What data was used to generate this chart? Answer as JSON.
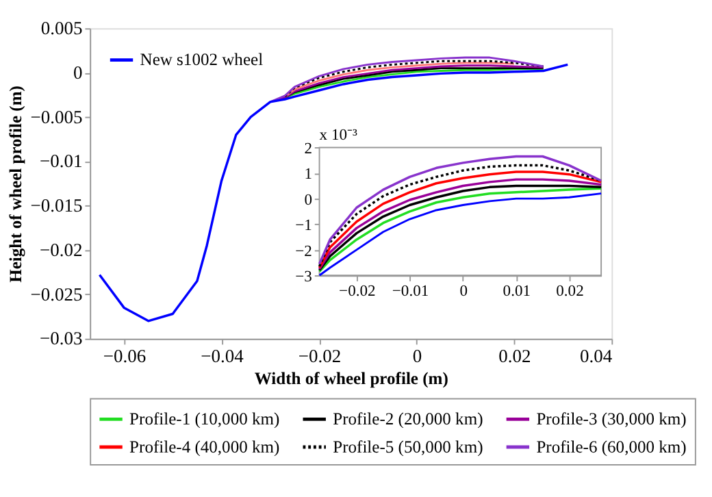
{
  "chart_data": [
    {
      "type": "line",
      "xlabel": "Width of wheel profile (m)",
      "ylabel": "Height of wheel profile (m)",
      "xlim": [
        -0.067,
        0.04
      ],
      "xticks": [
        -0.06,
        -0.04,
        -0.02,
        0,
        0.02,
        0.04
      ],
      "ylim": [
        -0.03,
        0.005
      ],
      "yticks": [
        -0.03,
        -0.025,
        -0.02,
        -0.015,
        -0.01,
        -0.005,
        0,
        0.005
      ],
      "grid": false,
      "legend": "top left",
      "line_style": "solid",
      "x": [
        -0.065,
        -0.06,
        -0.055,
        -0.05,
        -0.045,
        -0.043,
        -0.04,
        -0.037,
        -0.034,
        -0.03,
        -0.027,
        -0.025,
        -0.02,
        -0.015,
        -0.01,
        -0.005,
        0,
        0.005,
        0.01,
        0.015,
        0.02,
        0.026,
        0.031
      ],
      "series": [
        {
          "name": "New s1002 wheel",
          "color": "#0000ff",
          "values": [
            -0.0228,
            -0.0265,
            -0.028,
            -0.0272,
            -0.0235,
            -0.0195,
            -0.0122,
            -0.007,
            -0.005,
            -0.0033,
            -0.003,
            -0.0027,
            -0.002,
            -0.0013,
            -0.0008,
            -0.0005,
            -0.0003,
            -0.0001,
            0,
            0,
            0.0001,
            0.0002,
            0.0009
          ]
        },
        {
          "color": "#22dd22",
          "values": [
            null,
            null,
            null,
            null,
            null,
            null,
            null,
            null,
            null,
            null,
            -0.0028,
            -0.0024,
            -0.0016,
            -0.001,
            -0.0005,
            -0.0002,
            0.0001,
            0.0002,
            0.0003,
            0.0003,
            0.0004,
            0.0004,
            null
          ]
        },
        {
          "color": "#000000",
          "values": [
            null,
            null,
            null,
            null,
            null,
            null,
            null,
            null,
            null,
            null,
            -0.0028,
            -0.0022,
            -0.0014,
            -0.0007,
            -0.0003,
            0.0001,
            0.0003,
            0.0005,
            0.0005,
            0.0005,
            0.0005,
            0.0005,
            null
          ]
        },
        {
          "color": "#990099",
          "values": [
            null,
            null,
            null,
            null,
            null,
            null,
            null,
            null,
            null,
            -0.0033,
            -0.0028,
            -0.0021,
            -0.0012,
            -0.0005,
            -0.0001,
            0.0003,
            0.0005,
            0.0007,
            0.0008,
            0.0008,
            0.0007,
            0.0006,
            null
          ]
        },
        {
          "color": "#ff7777",
          "values": [
            null,
            null,
            null,
            null,
            null,
            null,
            null,
            null,
            null,
            null,
            -0.0027,
            -0.0019,
            -0.0009,
            -0.0002,
            0.0003,
            0.0006,
            0.0008,
            0.001,
            0.0011,
            0.0011,
            0.001,
            null,
            null
          ]
        },
        {
          "color": "#000000",
          "line_style": "dotted",
          "values": [
            null,
            null,
            null,
            null,
            null,
            null,
            null,
            null,
            null,
            null,
            -0.0027,
            -0.0017,
            -0.0006,
            0.0001,
            0.0006,
            0.0009,
            0.0011,
            0.0013,
            0.0013,
            0.0013,
            0.0011,
            0.0007,
            null
          ]
        },
        {
          "color": "#8833cc",
          "values": [
            null,
            null,
            null,
            null,
            null,
            null,
            null,
            null,
            null,
            -0.0033,
            -0.0026,
            -0.0016,
            -0.0004,
            0.0004,
            0.0009,
            0.0012,
            0.0014,
            0.0016,
            0.0017,
            0.0017,
            0.0013,
            0.0007,
            null
          ]
        }
      ]
    },
    {
      "type": "line",
      "xlim": [
        -0.027,
        0.026
      ],
      "xticks": [
        -0.02,
        -0.01,
        0,
        0.01,
        0.02
      ],
      "ylim": [
        -3,
        2
      ],
      "yticks": [
        -3,
        -2,
        -1,
        0,
        1,
        2
      ],
      "grid": false,
      "legend": "bottom",
      "line_style": "solid",
      "annotations": [
        "x 10⁻³"
      ],
      "x": [
        -0.027,
        -0.025,
        -0.02,
        -0.015,
        -0.01,
        -0.005,
        0,
        0.005,
        0.01,
        0.015,
        0.02,
        0.026
      ],
      "series": [
        {
          "color": "#0000ff",
          "values": [
            -3,
            -2.7,
            -2.0,
            -1.3,
            -0.8,
            -0.45,
            -0.25,
            -0.1,
            0,
            0,
            0.05,
            0.2
          ]
        },
        {
          "name": "Profile-1 (10,000 km)",
          "color": "#22dd22",
          "values": [
            -2.85,
            -2.4,
            -1.6,
            -0.95,
            -0.5,
            -0.15,
            0.05,
            0.2,
            0.25,
            0.3,
            0.35,
            0.4
          ]
        },
        {
          "name": "Profile-2 (20,000 km)",
          "color": "#000000",
          "values": [
            -2.8,
            -2.25,
            -1.35,
            -0.7,
            -0.25,
            0.05,
            0.3,
            0.45,
            0.5,
            0.5,
            0.5,
            0.45
          ]
        },
        {
          "name": "Profile-3 (30,000 km)",
          "color": "#990099",
          "values": [
            -2.75,
            -2.1,
            -1.15,
            -0.5,
            -0.05,
            0.25,
            0.5,
            0.65,
            0.75,
            0.75,
            0.7,
            0.55
          ]
        },
        {
          "name": "Profile-4 (40,000 km)",
          "color": "#ff0000",
          "values": [
            -2.7,
            -1.9,
            -0.9,
            -0.2,
            0.25,
            0.6,
            0.8,
            0.95,
            1.05,
            1.05,
            0.95,
            0.65
          ]
        },
        {
          "name": "Profile-5 (50,000 km)",
          "color": "#000000",
          "line_style": "dotted",
          "values": [
            -2.65,
            -1.7,
            -0.6,
            0.1,
            0.55,
            0.85,
            1.1,
            1.25,
            1.3,
            1.3,
            1.1,
            0.7
          ]
        },
        {
          "name": "Profile-6 (60,000 km)",
          "color": "#8833cc",
          "values": [
            -2.55,
            -1.6,
            -0.35,
            0.35,
            0.85,
            1.2,
            1.4,
            1.55,
            1.65,
            1.65,
            1.3,
            0.7
          ]
        }
      ]
    }
  ]
}
